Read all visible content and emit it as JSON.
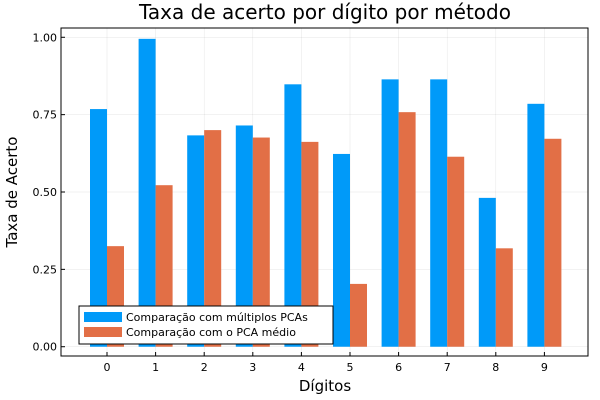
{
  "chart_data": {
    "type": "bar",
    "title": "Taxa de acerto por dígito por método",
    "xlabel": "Dígitos",
    "ylabel": "Taxa de Acerto",
    "categories": [
      "0",
      "1",
      "2",
      "3",
      "4",
      "5",
      "6",
      "7",
      "8",
      "9"
    ],
    "yticks": [
      "0.00",
      "0.25",
      "0.50",
      "0.75",
      "1.00"
    ],
    "ylim": [
      -0.03,
      1.03
    ],
    "grid": true,
    "legend_position": "bottom-left",
    "series": [
      {
        "name": "Comparação com múltiplos PCAs",
        "color": "#009af9",
        "values": [
          0.768,
          0.995,
          0.683,
          0.715,
          0.848,
          0.623,
          0.864,
          0.864,
          0.481,
          0.785
        ]
      },
      {
        "name": "Comparação com o PCA médio",
        "color": "#e26f46",
        "values": [
          0.325,
          0.522,
          0.7,
          0.676,
          0.662,
          0.203,
          0.758,
          0.614,
          0.318,
          0.672
        ]
      }
    ]
  }
}
